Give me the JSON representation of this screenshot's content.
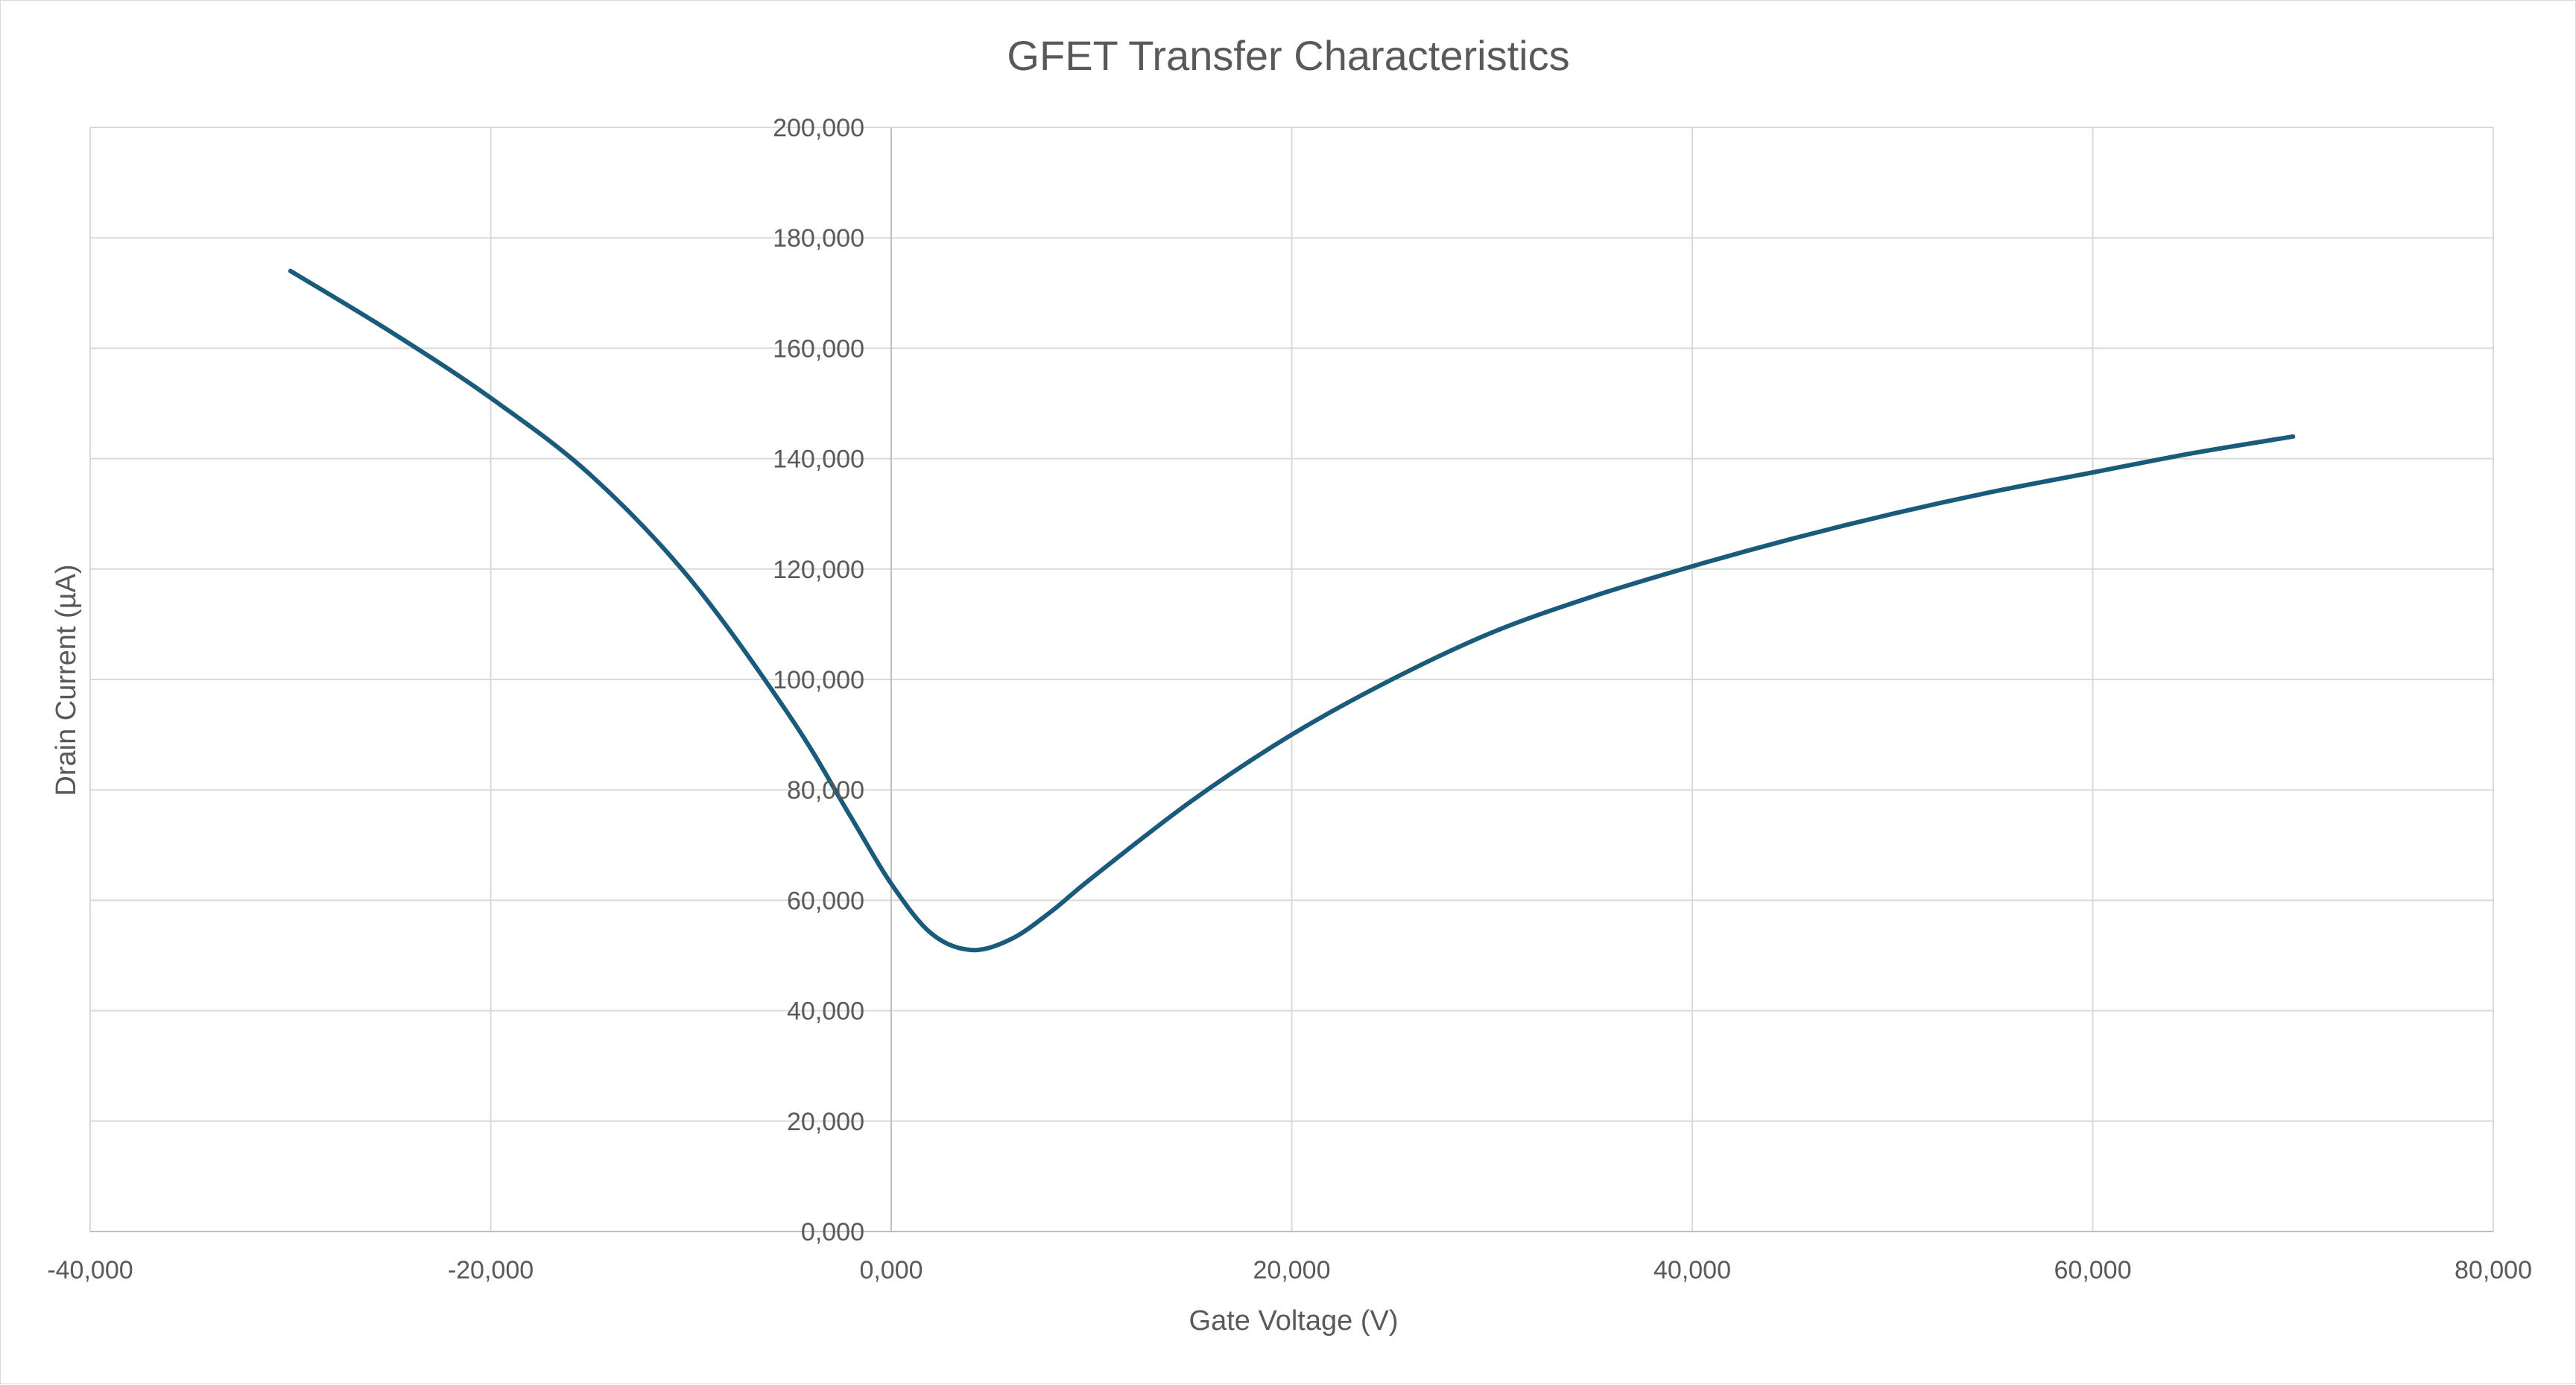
{
  "chart_data": {
    "type": "scatter",
    "title": "GFET Transfer Characteristics",
    "xlabel": "Gate Voltage (V)",
    "ylabel": "Drain Current (µA)",
    "xlim": [
      -40000,
      80000
    ],
    "ylim": [
      0,
      200000
    ],
    "x_ticks": [
      -40000,
      -20000,
      0,
      20000,
      40000,
      60000,
      80000
    ],
    "x_tick_labels": [
      "-40,000",
      "-20,000",
      "0,000",
      "20,000",
      "40,000",
      "60,000",
      "80,000"
    ],
    "y_ticks": [
      0,
      20000,
      40000,
      60000,
      80000,
      100000,
      120000,
      140000,
      160000,
      180000,
      200000
    ],
    "y_tick_labels": [
      "0,000",
      "20,000",
      "40,000",
      "60,000",
      "80,000",
      "100,000",
      "120,000",
      "140,000",
      "160,000",
      "180,000",
      "200,000"
    ],
    "grid": true,
    "legend": "none",
    "series": [
      {
        "color": "#1a5a7a",
        "smooth": true,
        "x": [
          -30000,
          -25000,
          -20000,
          -15000,
          -10000,
          -5000,
          -2000,
          0,
          2000,
          4000,
          6000,
          8000,
          10000,
          15000,
          20000,
          25000,
          30000,
          35000,
          40000,
          45000,
          50000,
          55000,
          60000,
          65000,
          70000
        ],
        "y": [
          174000,
          163000,
          151000,
          137000,
          118000,
          93000,
          75000,
          63000,
          54000,
          51000,
          53000,
          58000,
          64000,
          78000,
          90000,
          100000,
          108500,
          115000,
          120500,
          125500,
          130000,
          134000,
          137500,
          141000,
          144000
        ]
      }
    ]
  }
}
